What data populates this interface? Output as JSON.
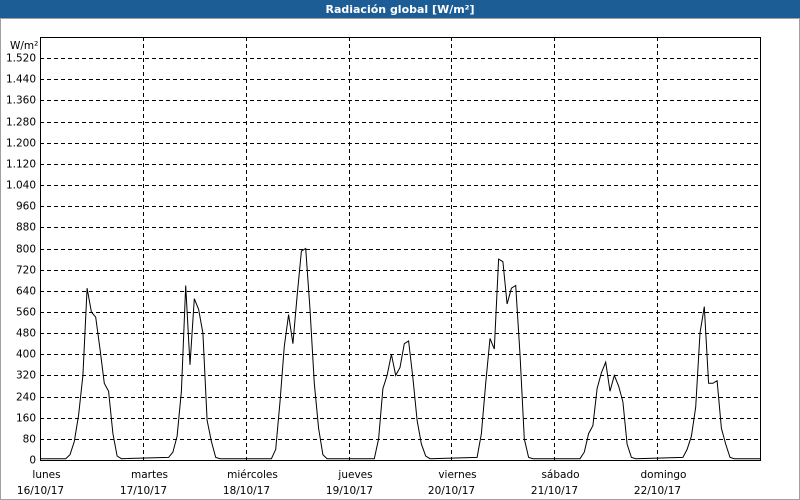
{
  "chart_data": {
    "type": "line",
    "title": "Radiación global [W/m²]",
    "y_unit": "W/m²",
    "x": [
      0,
      6,
      7,
      8,
      9,
      10,
      11,
      12,
      13,
      14,
      15,
      16,
      17,
      18,
      19,
      30,
      31,
      32,
      33,
      34,
      35,
      36,
      37,
      38,
      39,
      40,
      41,
      42,
      54,
      55,
      56,
      57,
      58,
      59,
      60,
      61,
      62,
      63,
      64,
      65,
      66,
      67,
      78,
      79,
      80,
      81,
      82,
      83,
      84,
      85,
      86,
      87,
      88,
      89,
      90,
      91,
      102,
      103,
      104,
      105,
      106,
      107,
      108,
      109,
      110,
      111,
      112,
      113,
      114,
      115,
      126,
      127,
      128,
      129,
      130,
      131,
      132,
      133,
      134,
      135,
      136,
      137,
      138,
      139,
      150,
      151,
      152,
      153,
      154,
      155,
      156,
      157,
      158,
      159,
      160,
      161,
      162,
      168
    ],
    "values": [
      5,
      5,
      20,
      70,
      170,
      320,
      650,
      560,
      540,
      420,
      290,
      260,
      100,
      15,
      5,
      10,
      30,
      90,
      260,
      660,
      360,
      610,
      570,
      480,
      150,
      70,
      10,
      5,
      5,
      40,
      220,
      430,
      550,
      440,
      620,
      790,
      800,
      570,
      290,
      120,
      20,
      5,
      5,
      80,
      270,
      320,
      400,
      320,
      350,
      440,
      450,
      310,
      150,
      60,
      15,
      5,
      10,
      100,
      290,
      460,
      420,
      760,
      750,
      590,
      650,
      660,
      400,
      80,
      10,
      5,
      5,
      30,
      100,
      130,
      270,
      330,
      370,
      260,
      320,
      280,
      220,
      60,
      10,
      5,
      10,
      40,
      90,
      200,
      480,
      580,
      290,
      290,
      300,
      120,
      60,
      10,
      5,
      5
    ],
    "color": "#000000",
    "xlim": [
      0,
      168
    ],
    "xticks": [
      {
        "value": 0,
        "label": "lunes",
        "sublabel": "16/10/17"
      },
      {
        "value": 24,
        "label": "martes",
        "sublabel": "17/10/17"
      },
      {
        "value": 48,
        "label": "miércoles",
        "sublabel": "18/10/17"
      },
      {
        "value": 72,
        "label": "jueves",
        "sublabel": "19/10/17"
      },
      {
        "value": 96,
        "label": "viernes",
        "sublabel": "20/10/17"
      },
      {
        "value": 120,
        "label": "sábado",
        "sublabel": "21/10/17"
      },
      {
        "value": 144,
        "label": "domingo",
        "sublabel": "22/10/17"
      }
    ],
    "ylim": [
      0,
      1600
    ],
    "yticks": [
      0,
      80,
      160,
      240,
      320,
      400,
      480,
      560,
      640,
      720,
      800,
      880,
      960,
      {
        "value": 1040,
        "label": "1.040"
      },
      {
        "value": 1120,
        "label": "1.120"
      },
      {
        "value": 1200,
        "label": "1.200"
      },
      {
        "value": 1280,
        "label": "1.280"
      },
      {
        "value": 1360,
        "label": "1.360"
      },
      {
        "value": 1440,
        "label": "1.440"
      },
      {
        "value": 1520,
        "label": "1.520"
      }
    ],
    "grid": true
  }
}
